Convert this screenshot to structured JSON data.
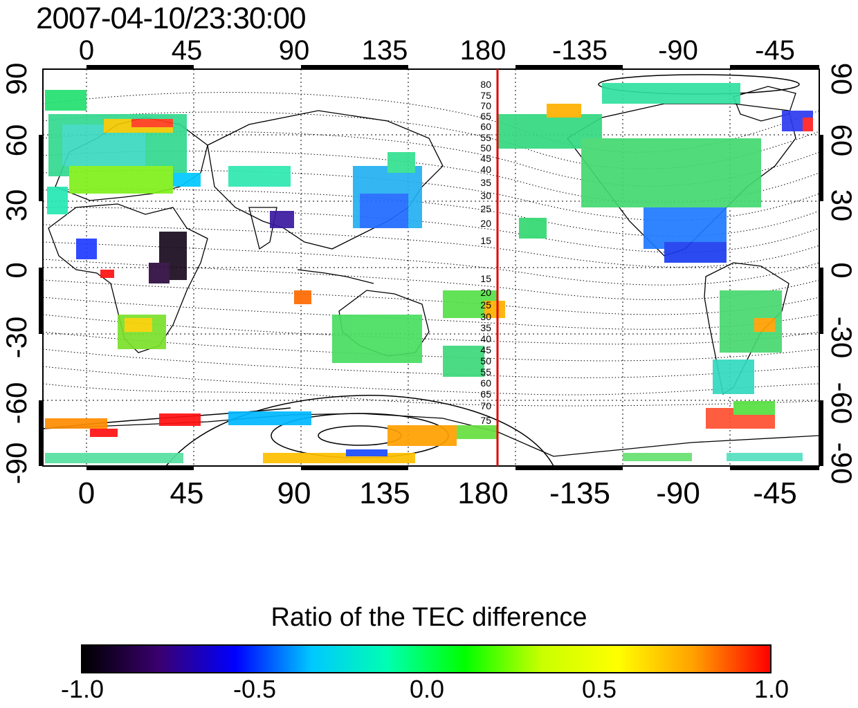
{
  "timestamp": "2007-04-10/23:30:00",
  "map": {
    "lon_ticks": [
      "0",
      "45",
      "90",
      "135",
      "180",
      "-135",
      "-90",
      "-45"
    ],
    "lat_ticks": [
      "90",
      "60",
      "30",
      "0",
      "-30",
      "-60",
      "-90"
    ],
    "red_line_label_north": [
      "80",
      "75",
      "70",
      "65",
      "60",
      "55",
      "50",
      "45",
      "40",
      "35",
      "30",
      "25",
      "20",
      "15"
    ],
    "red_line_label_south": [
      "15",
      "20",
      "25",
      "30",
      "35",
      "40",
      "45",
      "50",
      "55",
      "60",
      "65",
      "70",
      "75"
    ],
    "red_line_color": "#e00000"
  },
  "colorbar": {
    "title": "Ratio of the TEC difference",
    "ticks": [
      "-1.0",
      "-0.5",
      "0.0",
      "0.5",
      "1.0"
    ],
    "range": [
      -1.0,
      1.0
    ],
    "colormap": [
      "#000000",
      "#3a006e",
      "#0000ff",
      "#00c8ff",
      "#00ffb0",
      "#00ff00",
      "#c8ff00",
      "#ffff00",
      "#ffa000",
      "#ff0000"
    ]
  }
}
